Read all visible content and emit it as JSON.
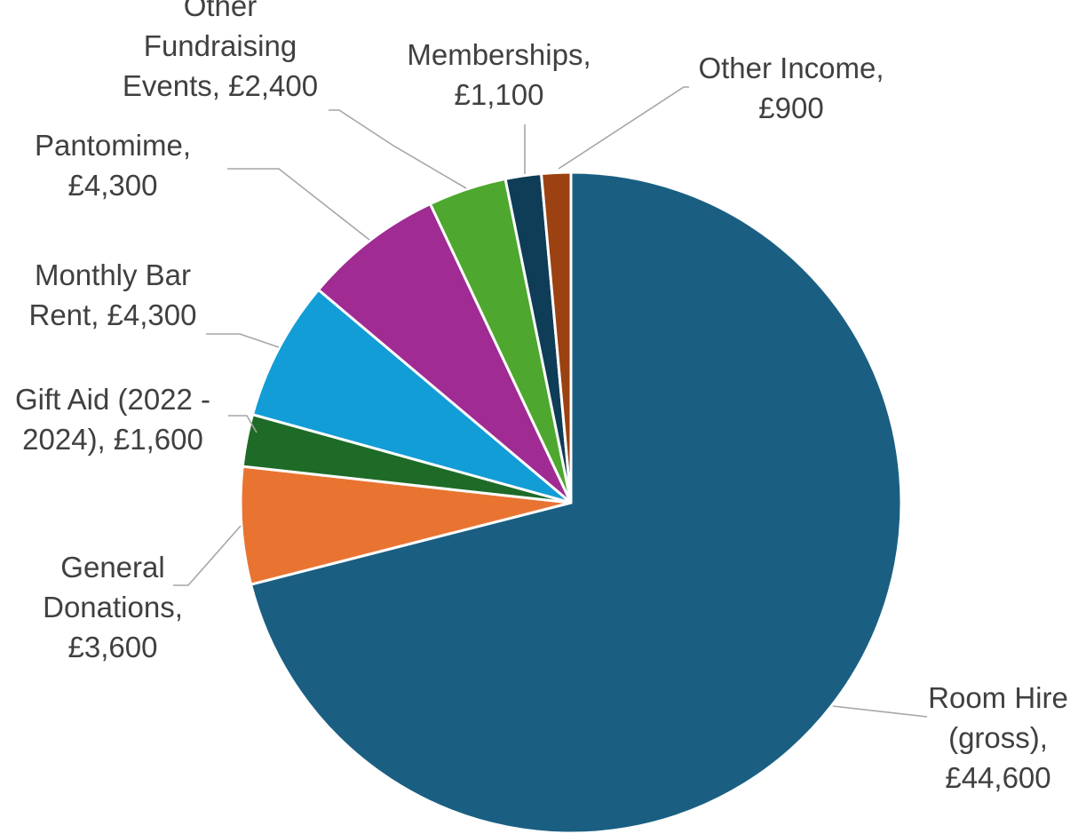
{
  "chart_data": {
    "type": "pie",
    "title": "",
    "categories": [
      "Room Hire (gross)",
      "General Donations",
      "Gift Aid (2022 - 2024)",
      "Monthly Bar Rent",
      "Pantomime",
      "Other Fundraising Events",
      "Memberships",
      "Other Income"
    ],
    "values": [
      44600,
      3600,
      1600,
      4300,
      4300,
      2400,
      1100,
      900
    ],
    "colors": [
      "#1a5f82",
      "#e97432",
      "#1e6b27",
      "#129dd6",
      "#a02b93",
      "#4ea72e",
      "#0f3c56",
      "#9c4111"
    ],
    "data_labels": [
      [
        "Room Hire",
        "(gross),",
        "£44,600"
      ],
      [
        "General",
        "Donations,",
        "£3,600"
      ],
      [
        "Gift Aid (2022 -",
        "2024), £1,600"
      ],
      [
        "Monthly Bar",
        "Rent, £4,300"
      ],
      [
        "Pantomime,",
        "£4,300"
      ],
      [
        "Other",
        "Fundraising",
        "Events, £2,400"
      ],
      [
        "Memberships,",
        "£1,100"
      ],
      [
        "Other Income,",
        "£900"
      ]
    ],
    "legend": "none"
  }
}
